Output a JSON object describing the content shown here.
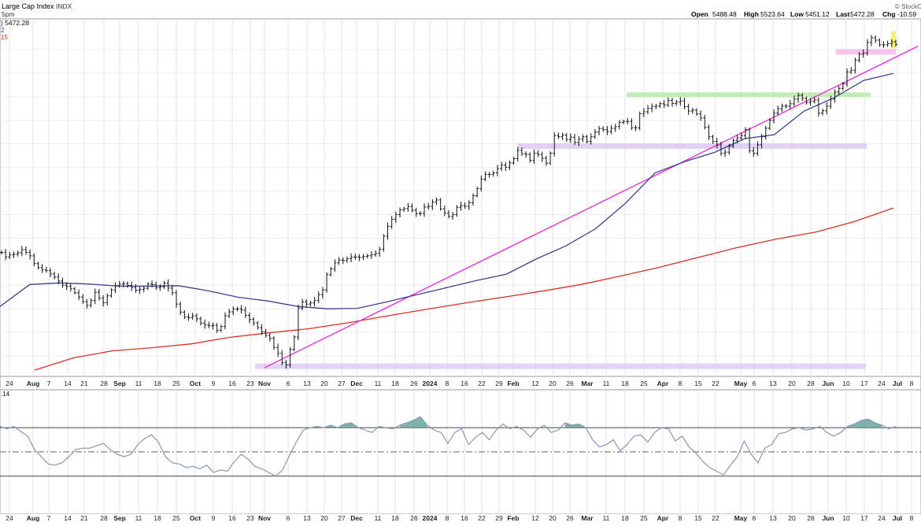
{
  "header": {
    "title": "Large Cap Index",
    "exchange": "INDX",
    "time_fragment": "5pm",
    "open_label": "Open",
    "open_value": "5488.48",
    "high_label": "High",
    "high_value": "5523.64",
    "low_label": "Low",
    "low_value": "5451.12",
    "last_label": "Last",
    "last_value": "5472.28",
    "chg_label": "Chg",
    "chg_value": "-10.59",
    "brand": "© StockC"
  },
  "legend": {
    "price": ") 5472.28",
    "ma50": "2",
    "ma200": "15"
  },
  "rsi_panel": {
    "label": ".14"
  },
  "colors": {
    "price_bars": "#111111",
    "ma50": "#3f3f8f",
    "ma200": "#d93025",
    "trendline": "#ee2fd6",
    "resistance_zone": "#b9e8a8",
    "support_zone": "#d9c5f4",
    "pink_zone": "#f6b9ec",
    "yellow_zone": "#f3ef69",
    "rsi_fill": "#5f9f93",
    "grid": "#e3e3e3"
  },
  "chart_data": [
    {
      "type": "line",
      "subtype": "ohlc-bars",
      "x_ticks": [
        "24",
        "Aug",
        "7",
        "14",
        "21",
        "28",
        "Sep",
        "11",
        "18",
        "25",
        "Oct",
        "9",
        "16",
        "23",
        "Nov",
        "6",
        "13",
        "20",
        "27",
        "Dec",
        "11",
        "18",
        "26",
        "2024",
        "8",
        "16",
        "22",
        "29",
        "Feb",
        "12",
        "20",
        "26",
        "Mar",
        "11",
        "18",
        "25",
        "Apr",
        "8",
        "15",
        "22",
        "May",
        "6",
        "13",
        "20",
        "28",
        "Jun",
        "10",
        "17",
        "24",
        "Jul",
        "8"
      ],
      "x_ticks_bold": [
        "Aug",
        "Sep",
        "Oct",
        "Nov",
        "Dec",
        "2024",
        "Feb",
        "Mar",
        "Apr",
        "May",
        "Jun",
        "Jul"
      ],
      "ylim": [
        4090,
        5560
      ],
      "series": [
        {
          "name": "price",
          "values": [
            4589,
            4570,
            4579,
            4582,
            4588,
            4601,
            4590,
            4575,
            4542,
            4525,
            4515,
            4512,
            4498,
            4485,
            4468,
            4450,
            4445,
            4435,
            4418,
            4400,
            4380,
            4365,
            4385,
            4420,
            4396,
            4376,
            4405,
            4430,
            4448,
            4455,
            4457,
            4449,
            4440,
            4429,
            4432,
            4437,
            4455,
            4453,
            4440,
            4444,
            4459,
            4438,
            4418,
            4370,
            4336,
            4315,
            4312,
            4320,
            4308,
            4289,
            4281,
            4278,
            4280,
            4259,
            4275,
            4320,
            4337,
            4349,
            4350,
            4345,
            4322,
            4305,
            4290,
            4270,
            4252,
            4237,
            4225,
            4186,
            4161,
            4122,
            4112,
            4178,
            4230,
            4353,
            4380,
            4370,
            4375,
            4385,
            4410,
            4430,
            4495,
            4520,
            4545,
            4557,
            4555,
            4563,
            4569,
            4570,
            4568,
            4572,
            4575,
            4580,
            4585,
            4602,
            4658,
            4700,
            4730,
            4750,
            4770,
            4775,
            4784,
            4768,
            4754,
            4755,
            4782,
            4785,
            4803,
            4812,
            4774,
            4756,
            4742,
            4750,
            4781,
            4788,
            4785,
            4800,
            4830,
            4860,
            4900,
            4920,
            4920,
            4927,
            4945,
            4960,
            4951,
            4969,
            4987,
            5022,
            5008,
            5005,
            4980,
            5010,
            5005,
            4989,
            4968,
            5010,
            5085,
            5080,
            5087,
            5069,
            5078,
            5056,
            5070,
            5080,
            5060,
            5080,
            5100,
            5115,
            5110,
            5102,
            5116,
            5123,
            5141,
            5145,
            5145,
            5118,
            5118,
            5178,
            5186,
            5200,
            5209,
            5210,
            5220,
            5215,
            5234,
            5221,
            5227,
            5232,
            5208,
            5189,
            5193,
            5177,
            5160,
            5120,
            5080,
            5060,
            5045,
            5010,
            5015,
            5040,
            5065,
            5075,
            5085,
            5110,
            5020,
            5010,
            5046,
            5080,
            5116,
            5150,
            5180,
            5199,
            5210,
            5210,
            5220,
            5240,
            5255,
            5243,
            5225,
            5230,
            5236,
            5180,
            5190,
            5210,
            5240,
            5270,
            5285,
            5305,
            5355,
            5362,
            5405,
            5430,
            5435,
            5480,
            5500,
            5490,
            5470,
            5470,
            5475,
            5483,
            5472
          ]
        },
        {
          "name": "ma50",
          "values": [
            4360,
            4453,
            4460,
            4455,
            4446,
            4446,
            4448,
            4426,
            4399,
            4383,
            4360,
            4350,
            4352,
            4380,
            4410,
            4440,
            4470,
            4497,
            4561,
            4617,
            4690,
            4798,
            4927,
            4975,
            5014,
            5072,
            5089,
            5189,
            5245,
            5319,
            5349
          ]
        },
        {
          "name": "ma200",
          "values": [
            4090,
            4142,
            4172,
            4185,
            4201,
            4229,
            4248,
            4265,
            4290,
            4319,
            4347,
            4374,
            4399,
            4425,
            4453,
            4489,
            4526,
            4568,
            4610,
            4646,
            4675,
            4720,
            4778
          ]
        }
      ]
    },
    {
      "type": "line",
      "name_hint": "rsi",
      "ylim": [
        20,
        85
      ],
      "reference_lines": [
        70,
        50,
        30
      ],
      "series": [
        {
          "values": [
            71,
            69,
            71,
            67,
            63,
            52,
            46,
            40,
            39,
            41,
            46,
            52,
            53,
            53,
            55,
            57,
            52,
            48,
            46,
            48,
            56,
            61,
            64,
            58,
            46,
            41,
            40,
            37,
            38,
            36,
            39,
            33,
            35,
            34,
            42,
            48,
            44,
            38,
            36,
            33,
            30,
            35,
            47,
            58,
            68,
            70,
            71,
            70,
            72,
            70,
            73,
            74,
            70,
            68,
            66,
            71,
            70,
            69,
            72,
            74,
            76,
            79,
            72,
            68,
            66,
            57,
            66,
            69,
            56,
            62,
            66,
            60,
            68,
            73,
            69,
            71,
            68,
            62,
            69,
            72,
            66,
            68,
            74,
            72,
            73,
            70,
            60,
            54,
            56,
            60,
            51,
            56,
            63,
            64,
            58,
            66,
            70,
            69,
            59,
            63,
            54,
            49,
            42,
            37,
            34,
            31,
            39,
            46,
            59,
            48,
            41,
            53,
            56,
            65,
            66,
            69,
            70,
            68,
            69,
            71,
            66,
            63,
            66,
            71,
            73,
            76,
            77,
            74,
            72,
            69,
            71
          ]
        }
      ]
    }
  ]
}
